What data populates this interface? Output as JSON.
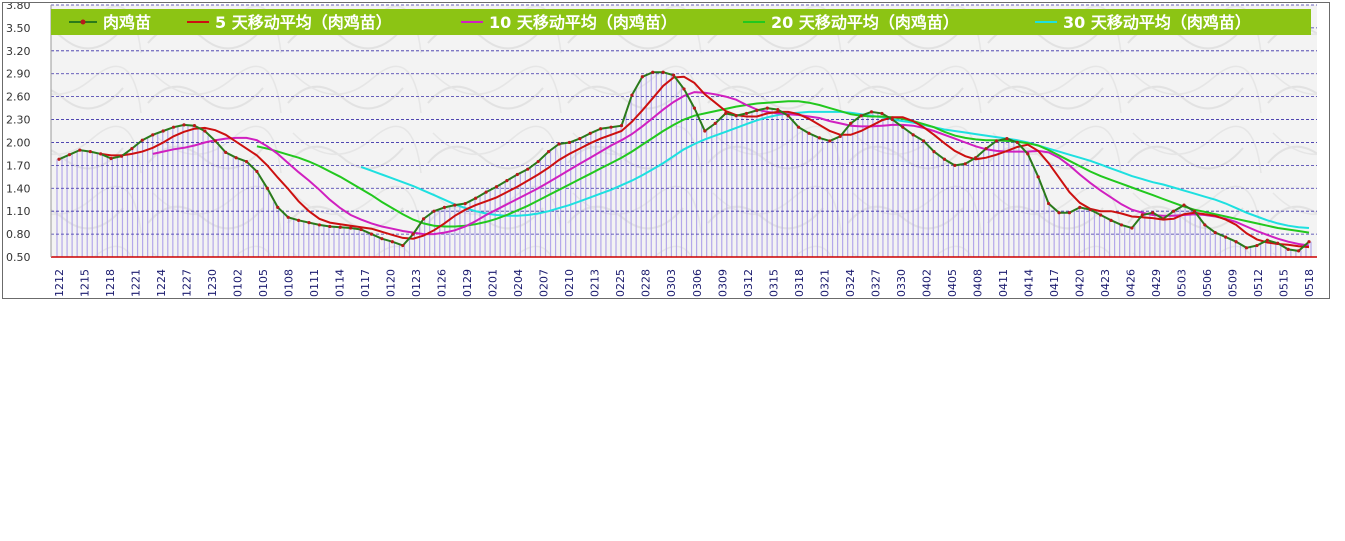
{
  "chart_data": {
    "type": "line",
    "title": "",
    "ylim": [
      0.5,
      3.8
    ],
    "yticks": [
      "3.80",
      "3.50",
      "3.20",
      "2.90",
      "2.60",
      "2.30",
      "2.00",
      "1.70",
      "1.40",
      "1.10",
      "0.80",
      "0.50"
    ],
    "x_tick_labels": [
      "1212",
      "1215",
      "1218",
      "1221",
      "1224",
      "1227",
      "1230",
      "0102",
      "0105",
      "0108",
      "0111",
      "0114",
      "0117",
      "0120",
      "0123",
      "0126",
      "0129",
      "0201",
      "0204",
      "0207",
      "0210",
      "0213",
      "0225",
      "0228",
      "0303",
      "0306",
      "0309",
      "0312",
      "0315",
      "0318",
      "0321",
      "0324",
      "0327",
      "0330",
      "0402",
      "0405",
      "0408",
      "0411",
      "0414",
      "0417",
      "0420",
      "0423",
      "0426",
      "0429",
      "0503",
      "0506",
      "0509",
      "0512",
      "0515",
      "0518"
    ],
    "legend_position": "top",
    "grid": true,
    "series": [
      {
        "name": "肉鸡苗",
        "color": "#2a7a1a",
        "values": [
          1.78,
          1.84,
          1.9,
          1.88,
          1.85,
          1.79,
          1.82,
          1.92,
          2.03,
          2.1,
          2.15,
          2.2,
          2.23,
          2.22,
          2.15,
          2.02,
          1.87,
          1.8,
          1.75,
          1.62,
          1.4,
          1.15,
          1.02,
          0.98,
          0.95,
          0.92,
          0.9,
          0.89,
          0.88,
          0.86,
          0.8,
          0.74,
          0.7,
          0.65,
          0.8,
          1.0,
          1.1,
          1.15,
          1.18,
          1.2,
          1.27,
          1.35,
          1.42,
          1.5,
          1.58,
          1.65,
          1.75,
          1.88,
          1.98,
          2.0,
          2.05,
          2.12,
          2.18,
          2.2,
          2.22,
          2.62,
          2.86,
          2.92,
          2.92,
          2.88,
          2.7,
          2.45,
          2.15,
          2.25,
          2.38,
          2.35,
          2.38,
          2.42,
          2.45,
          2.43,
          2.35,
          2.2,
          2.12,
          2.06,
          2.02,
          2.08,
          2.25,
          2.35,
          2.4,
          2.38,
          2.3,
          2.2,
          2.1,
          2.02,
          1.88,
          1.78,
          1.7,
          1.72,
          1.8,
          1.92,
          2.02,
          2.05,
          2.0,
          1.85,
          1.55,
          1.2,
          1.08,
          1.08,
          1.15,
          1.12,
          1.05,
          0.98,
          0.92,
          0.88,
          1.05,
          1.08,
          1.0,
          1.1,
          1.18,
          1.1,
          0.92,
          0.82,
          0.76,
          0.7,
          0.62,
          0.65,
          0.72,
          0.68,
          0.6,
          0.58,
          0.7
        ]
      },
      {
        "name": "5 天移动平均（肉鸡苗）",
        "color": "#cc1010",
        "values": [
          null,
          null,
          null,
          null,
          1.85,
          1.83,
          1.83,
          1.85,
          1.88,
          1.93,
          2.0,
          2.08,
          2.14,
          2.18,
          2.19,
          2.16,
          2.1,
          2.01,
          1.92,
          1.83,
          1.7,
          1.54,
          1.39,
          1.23,
          1.1,
          1.0,
          0.95,
          0.93,
          0.91,
          0.89,
          0.87,
          0.83,
          0.79,
          0.75,
          0.74,
          0.78,
          0.85,
          0.94,
          1.04,
          1.12,
          1.18,
          1.23,
          1.28,
          1.35,
          1.42,
          1.5,
          1.58,
          1.67,
          1.77,
          1.85,
          1.92,
          1.99,
          2.05,
          2.1,
          2.15,
          2.27,
          2.42,
          2.58,
          2.74,
          2.85,
          2.86,
          2.78,
          2.63,
          2.52,
          2.41,
          2.36,
          2.34,
          2.34,
          2.38,
          2.4,
          2.4,
          2.37,
          2.31,
          2.23,
          2.15,
          2.1,
          2.1,
          2.15,
          2.22,
          2.29,
          2.33,
          2.33,
          2.28,
          2.2,
          2.1,
          1.99,
          1.89,
          1.82,
          1.78,
          1.8,
          1.84,
          1.89,
          1.94,
          1.97,
          1.89,
          1.73,
          1.54,
          1.35,
          1.21,
          1.13,
          1.1,
          1.1,
          1.07,
          1.03,
          1.02,
          1.01,
          0.99,
          1.0,
          1.06,
          1.08,
          1.06,
          1.04,
          0.99,
          0.92,
          0.81,
          0.73,
          0.69,
          0.67,
          0.66,
          0.64,
          0.63
        ]
      },
      {
        "name": "10 天移动平均（肉鸡苗）",
        "color": "#d020c0",
        "values": [
          null,
          null,
          null,
          null,
          null,
          null,
          null,
          null,
          null,
          1.85,
          1.88,
          1.91,
          1.93,
          1.96,
          2.0,
          2.03,
          2.05,
          2.06,
          2.06,
          2.03,
          1.95,
          1.85,
          1.73,
          1.61,
          1.5,
          1.38,
          1.25,
          1.14,
          1.05,
          0.99,
          0.94,
          0.9,
          0.87,
          0.84,
          0.82,
          0.8,
          0.8,
          0.82,
          0.85,
          0.9,
          0.97,
          1.05,
          1.12,
          1.19,
          1.26,
          1.33,
          1.4,
          1.48,
          1.56,
          1.64,
          1.72,
          1.8,
          1.88,
          1.96,
          2.03,
          2.11,
          2.21,
          2.32,
          2.43,
          2.53,
          2.61,
          2.66,
          2.65,
          2.63,
          2.6,
          2.56,
          2.49,
          2.43,
          2.4,
          2.38,
          2.37,
          2.36,
          2.34,
          2.32,
          2.28,
          2.25,
          2.22,
          2.21,
          2.21,
          2.22,
          2.23,
          2.23,
          2.22,
          2.19,
          2.15,
          2.1,
          2.05,
          2.0,
          1.95,
          1.91,
          1.89,
          1.88,
          1.88,
          1.88,
          1.89,
          1.87,
          1.8,
          1.7,
          1.58,
          1.47,
          1.37,
          1.28,
          1.19,
          1.12,
          1.08,
          1.05,
          1.04,
          1.04,
          1.05,
          1.06,
          1.05,
          1.03,
          1.0,
          0.96,
          0.9,
          0.84,
          0.79,
          0.74,
          0.7,
          0.67,
          0.65
        ]
      },
      {
        "name": "20 天移动平均（肉鸡苗）",
        "color": "#22c81e",
        "values": [
          null,
          null,
          null,
          null,
          null,
          null,
          null,
          null,
          null,
          null,
          null,
          null,
          null,
          null,
          null,
          null,
          null,
          null,
          null,
          1.95,
          1.92,
          1.88,
          1.84,
          1.8,
          1.75,
          1.69,
          1.62,
          1.55,
          1.47,
          1.39,
          1.31,
          1.22,
          1.14,
          1.06,
          0.99,
          0.94,
          0.91,
          0.9,
          0.9,
          0.91,
          0.93,
          0.96,
          1.0,
          1.05,
          1.11,
          1.17,
          1.24,
          1.31,
          1.38,
          1.45,
          1.52,
          1.59,
          1.66,
          1.73,
          1.8,
          1.88,
          1.97,
          2.06,
          2.15,
          2.23,
          2.3,
          2.35,
          2.38,
          2.41,
          2.44,
          2.47,
          2.49,
          2.51,
          2.52,
          2.53,
          2.54,
          2.54,
          2.52,
          2.49,
          2.45,
          2.41,
          2.37,
          2.35,
          2.34,
          2.34,
          2.33,
          2.31,
          2.28,
          2.24,
          2.2,
          2.14,
          2.09,
          2.06,
          2.04,
          2.03,
          2.03,
          2.02,
          2.01,
          1.99,
          1.96,
          1.9,
          1.83,
          1.76,
          1.69,
          1.62,
          1.56,
          1.51,
          1.46,
          1.41,
          1.36,
          1.31,
          1.26,
          1.21,
          1.16,
          1.12,
          1.09,
          1.06,
          1.03,
          1.0,
          0.97,
          0.94,
          0.91,
          0.88,
          0.86,
          0.84,
          0.82
        ]
      },
      {
        "name": "30 天移动平均（肉鸡苗）",
        "color": "#1ee0e0",
        "values": [
          null,
          null,
          null,
          null,
          null,
          null,
          null,
          null,
          null,
          null,
          null,
          null,
          null,
          null,
          null,
          null,
          null,
          null,
          null,
          null,
          null,
          null,
          null,
          null,
          null,
          null,
          null,
          null,
          null,
          1.68,
          1.63,
          1.58,
          1.53,
          1.48,
          1.43,
          1.37,
          1.31,
          1.25,
          1.19,
          1.14,
          1.1,
          1.07,
          1.05,
          1.04,
          1.04,
          1.05,
          1.07,
          1.1,
          1.14,
          1.18,
          1.23,
          1.28,
          1.33,
          1.38,
          1.44,
          1.5,
          1.57,
          1.65,
          1.73,
          1.82,
          1.91,
          1.98,
          2.04,
          2.09,
          2.14,
          2.19,
          2.24,
          2.29,
          2.33,
          2.36,
          2.38,
          2.39,
          2.4,
          2.4,
          2.4,
          2.4,
          2.39,
          2.37,
          2.35,
          2.33,
          2.3,
          2.28,
          2.26,
          2.23,
          2.2,
          2.17,
          2.15,
          2.13,
          2.11,
          2.09,
          2.07,
          2.05,
          2.03,
          2.0,
          1.96,
          1.92,
          1.88,
          1.84,
          1.8,
          1.76,
          1.71,
          1.66,
          1.61,
          1.56,
          1.52,
          1.48,
          1.45,
          1.41,
          1.37,
          1.33,
          1.29,
          1.25,
          1.2,
          1.14,
          1.08,
          1.03,
          0.98,
          0.94,
          0.91,
          0.89,
          0.88
        ]
      }
    ]
  }
}
